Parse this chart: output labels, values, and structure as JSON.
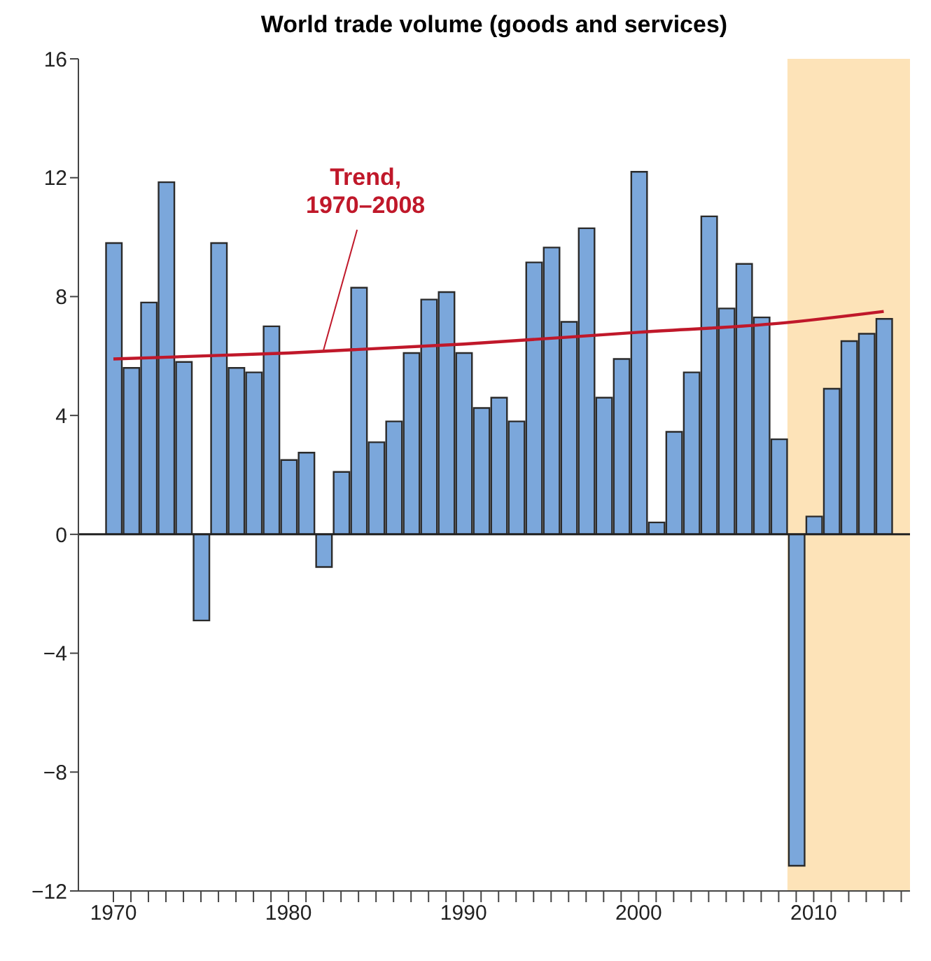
{
  "chart_data": {
    "type": "bar",
    "title": "World trade volume (goods and services)",
    "x": [
      1970,
      1971,
      1972,
      1973,
      1974,
      1975,
      1976,
      1977,
      1978,
      1979,
      1980,
      1981,
      1982,
      1983,
      1984,
      1985,
      1986,
      1987,
      1988,
      1989,
      1990,
      1991,
      1992,
      1993,
      1994,
      1995,
      1996,
      1997,
      1998,
      1999,
      2000,
      2001,
      2002,
      2003,
      2004,
      2005,
      2006,
      2007,
      2008,
      2009,
      2010,
      2011,
      2012,
      2013,
      2014
    ],
    "series": [
      {
        "color": "#7ba7db",
        "values": [
          9.8,
          5.6,
          7.8,
          11.85,
          5.8,
          -2.9,
          9.8,
          5.6,
          5.45,
          7.0,
          2.5,
          2.75,
          -1.1,
          2.1,
          8.3,
          3.1,
          3.8,
          6.1,
          7.9,
          8.15,
          6.1,
          4.25,
          4.6,
          3.8,
          9.15,
          9.65,
          7.15,
          10.3,
          4.6,
          5.9,
          12.2,
          0.4,
          3.45,
          5.45,
          10.7,
          7.6,
          9.1,
          7.3,
          3.2,
          -11.15,
          0.6,
          4.9,
          6.5,
          6.75,
          7.25
        ]
      },
      {
        "type": "line",
        "name": "Trend, 1970–2008",
        "color": "#c0182a",
        "x": [
          1970,
          1980,
          1990,
          2000,
          2008,
          2014
        ],
        "values": [
          5.9,
          6.1,
          6.4,
          6.8,
          7.1,
          7.5
        ]
      }
    ],
    "xlim": [
      1968,
      2015.5
    ],
    "xticks": [
      1970,
      {
        "value": 1971,
        "label": null
      },
      {
        "value": 1972,
        "label": null
      },
      {
        "value": 1973,
        "label": null
      },
      {
        "value": 1974,
        "label": null
      },
      {
        "value": 1975,
        "label": null
      },
      {
        "value": 1976,
        "label": null
      },
      {
        "value": 1977,
        "label": null
      },
      {
        "value": 1978,
        "label": null
      },
      {
        "value": 1979,
        "label": null
      },
      1980,
      {
        "value": 1981,
        "label": null
      },
      {
        "value": 1982,
        "label": null
      },
      {
        "value": 1983,
        "label": null
      },
      {
        "value": 1984,
        "label": null
      },
      {
        "value": 1985,
        "label": null
      },
      {
        "value": 1986,
        "label": null
      },
      {
        "value": 1987,
        "label": null
      },
      {
        "value": 1988,
        "label": null
      },
      {
        "value": 1989,
        "label": null
      },
      1990,
      {
        "value": 1991,
        "label": null
      },
      {
        "value": 1992,
        "label": null
      },
      {
        "value": 1993,
        "label": null
      },
      {
        "value": 1994,
        "label": null
      },
      {
        "value": 1995,
        "label": null
      },
      {
        "value": 1996,
        "label": null
      },
      {
        "value": 1997,
        "label": null
      },
      {
        "value": 1998,
        "label": null
      },
      {
        "value": 1999,
        "label": null
      },
      2000,
      {
        "value": 2001,
        "label": null
      },
      {
        "value": 2002,
        "label": null
      },
      {
        "value": 2003,
        "label": null
      },
      {
        "value": 2004,
        "label": null
      },
      {
        "value": 2005,
        "label": null
      },
      {
        "value": 2006,
        "label": null
      },
      {
        "value": 2007,
        "label": null
      },
      {
        "value": 2008,
        "label": null
      },
      {
        "value": 2009,
        "label": null
      },
      2010,
      {
        "value": 2011,
        "label": null
      },
      {
        "value": 2012,
        "label": null
      },
      {
        "value": 2013,
        "label": null
      },
      {
        "value": 2014,
        "label": null
      },
      {
        "value": 2015,
        "label": null
      }
    ],
    "ylim": [
      -12,
      16
    ],
    "yticks": [
      {
        "value": -12,
        "label": "−12"
      },
      {
        "value": -8,
        "label": "−8"
      },
      {
        "value": -4,
        "label": "−4"
      },
      0,
      4,
      8,
      12,
      16
    ],
    "ref_lines": [
      {
        "axis": "y",
        "value": 0,
        "color": "#222222"
      }
    ],
    "bands": [
      {
        "axis": "x",
        "from": 2008.5,
        "to": 2015.5,
        "color": "#fde3b8"
      }
    ],
    "grid": false,
    "legend": false
  }
}
